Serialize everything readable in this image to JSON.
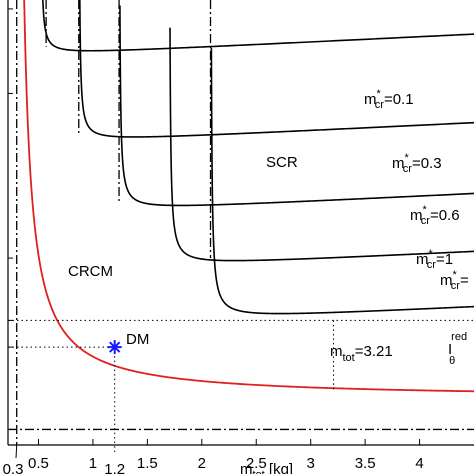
{
  "chart_data": {
    "type": "line",
    "title": "",
    "xlabel": "m",
    "xlabel_sub": "tot",
    "xlabel_unit": " [kg]",
    "ylabel": "",
    "xlim": [
      0.22,
      4.5
    ],
    "ylim": [
      0,
      1
    ],
    "x_ticks": [
      {
        "value": 0.5,
        "label": "0.5"
      },
      {
        "value": 1.0,
        "label": "1"
      },
      {
        "value": 1.5,
        "label": "1.5"
      },
      {
        "value": 2.0,
        "label": "2"
      },
      {
        "value": 2.5,
        "label": "2.5"
      },
      {
        "value": 3.0,
        "label": "3"
      },
      {
        "value": 3.5,
        "label": "3.5"
      },
      {
        "value": 4.0,
        "label": "4"
      }
    ],
    "extra_x_ticks": [
      {
        "value": 0.3,
        "label": "0.3"
      },
      {
        "value": 1.2,
        "label": "1.2"
      }
    ],
    "crcm_curve": {
      "name": "CRCM",
      "color": "#e02020",
      "asymptote_x": 0.3
    },
    "scr_curves": [
      {
        "name": "m*cr=0.1",
        "label_main": "m",
        "label_sup": "*",
        "label_sub": "cr",
        "label_value": "=0.1",
        "asymptote_x": 0.52,
        "minimum": 0.875
      },
      {
        "name": "m*cr=0.3",
        "label_main": "m",
        "label_sup": "*",
        "label_sub": "cr",
        "label_value": "=0.3",
        "asymptote_x": 0.87,
        "minimum": 0.68
      },
      {
        "name": "m*cr=0.6",
        "label_main": "m",
        "label_sup": "*",
        "label_sub": "cr",
        "label_value": "=0.6",
        "asymptote_x": 1.24,
        "minimum": 0.525
      },
      {
        "name": "m*cr=1",
        "label_main": "m",
        "label_sup": "*",
        "label_sub": "cr",
        "label_value": "=1",
        "asymptote_x": 1.7,
        "minimum": 0.4
      },
      {
        "name": "m*cr=",
        "label_main": "m",
        "label_sup": "*",
        "label_sub": "cr",
        "label_value": "=",
        "asymptote_x": 2.08,
        "minimum": 0.28
      }
    ],
    "vertical_dashdot_x": [
      0.3,
      0.57,
      0.87,
      1.24,
      2.08
    ],
    "horizontal_dashdot_y": 0.035,
    "optimum_line": {
      "x": 3.21,
      "y": 0.28
    },
    "dm_point": {
      "x": 1.2,
      "y": 0.22,
      "label": "DM",
      "color": "#1a1aff"
    },
    "regions": {
      "scr": "SCR",
      "crcm": "CRCM",
      "dm": "DM"
    },
    "annotations": {
      "mtot_main": "m",
      "mtot_sub": "tot",
      "mtot_value": "=3.21",
      "itheta_main": "I",
      "itheta_sup": "red",
      "itheta_sub": "θ"
    }
  }
}
